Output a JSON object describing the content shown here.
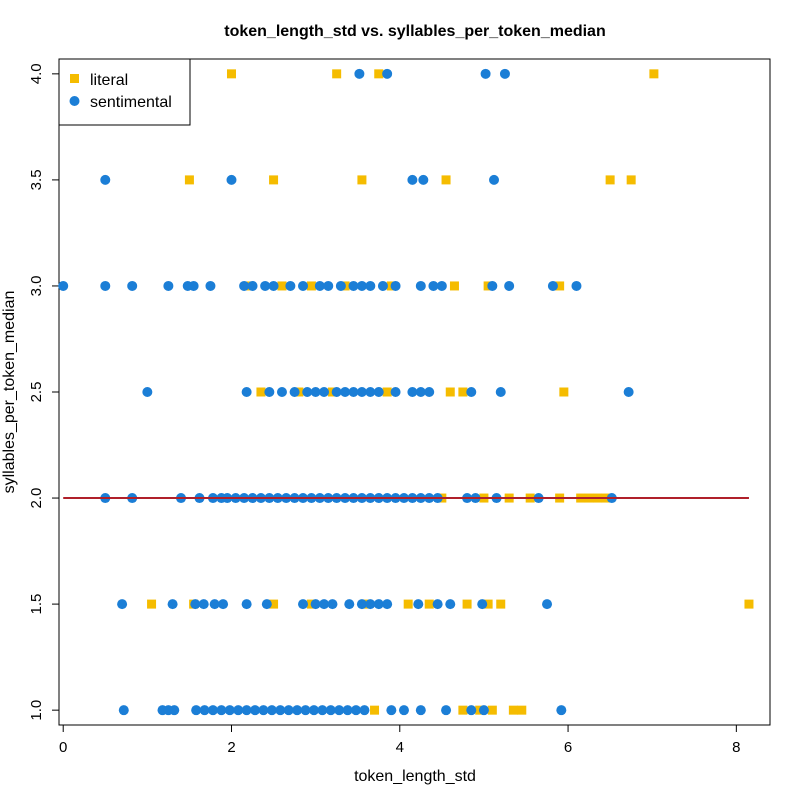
{
  "chart_data": {
    "type": "scatter",
    "title": "token_length_std vs. syllables_per_token_median",
    "xlabel": "token_length_std",
    "ylabel": "syllables_per_token_median",
    "xlim": [
      -0.05,
      8.4
    ],
    "ylim": [
      0.93,
      4.07
    ],
    "x_ticks": [
      "0",
      "2",
      "4",
      "6",
      "8"
    ],
    "y_ticks": [
      "1.0",
      "1.5",
      "2.0",
      "2.5",
      "3.0",
      "3.5",
      "4.0"
    ],
    "legend_position": "top-left",
    "series": [
      {
        "name": "literal",
        "marker": "square",
        "color": "#F5BC00",
        "points": [
          [
            2.0,
            4.0
          ],
          [
            3.25,
            4.0
          ],
          [
            3.75,
            4.0
          ],
          [
            7.02,
            4.0
          ],
          [
            1.5,
            3.5
          ],
          [
            2.5,
            3.5
          ],
          [
            3.55,
            3.5
          ],
          [
            4.55,
            3.5
          ],
          [
            6.5,
            3.5
          ],
          [
            6.75,
            3.5
          ],
          [
            2.2,
            3.0
          ],
          [
            2.6,
            3.0
          ],
          [
            2.95,
            3.0
          ],
          [
            3.35,
            3.0
          ],
          [
            3.9,
            3.0
          ],
          [
            4.65,
            3.0
          ],
          [
            5.05,
            3.0
          ],
          [
            5.9,
            3.0
          ],
          [
            2.35,
            2.5
          ],
          [
            2.8,
            2.5
          ],
          [
            3.2,
            2.5
          ],
          [
            3.85,
            2.5
          ],
          [
            4.6,
            2.5
          ],
          [
            4.75,
            2.5
          ],
          [
            5.95,
            2.5
          ],
          [
            4.5,
            2.0
          ],
          [
            5.0,
            2.0
          ],
          [
            5.3,
            2.0
          ],
          [
            5.55,
            2.0
          ],
          [
            5.9,
            2.0
          ],
          [
            6.15,
            2.0
          ],
          [
            6.25,
            2.0
          ],
          [
            6.35,
            2.0
          ],
          [
            6.45,
            2.0
          ],
          [
            1.05,
            1.5
          ],
          [
            1.55,
            1.5
          ],
          [
            2.5,
            1.5
          ],
          [
            2.95,
            1.5
          ],
          [
            3.6,
            1.5
          ],
          [
            4.1,
            1.5
          ],
          [
            4.35,
            1.5
          ],
          [
            4.8,
            1.5
          ],
          [
            5.05,
            1.5
          ],
          [
            5.2,
            1.5
          ],
          [
            8.15,
            1.5
          ],
          [
            4.75,
            1.0
          ],
          [
            4.95,
            1.0
          ],
          [
            5.1,
            1.0
          ],
          [
            5.35,
            1.0
          ],
          [
            5.45,
            1.0
          ],
          [
            3.7,
            1.0
          ]
        ]
      },
      {
        "name": "sentimental",
        "marker": "circle",
        "color": "#1B7ED6",
        "points": [
          [
            3.52,
            4.0
          ],
          [
            3.85,
            4.0
          ],
          [
            5.02,
            4.0
          ],
          [
            5.25,
            4.0
          ],
          [
            0.5,
            3.5
          ],
          [
            2.0,
            3.5
          ],
          [
            4.15,
            3.5
          ],
          [
            4.28,
            3.5
          ],
          [
            5.12,
            3.5
          ],
          [
            0.0,
            3.0
          ],
          [
            0.5,
            3.0
          ],
          [
            0.82,
            3.0
          ],
          [
            1.25,
            3.0
          ],
          [
            1.48,
            3.0
          ],
          [
            1.55,
            3.0
          ],
          [
            1.75,
            3.0
          ],
          [
            2.15,
            3.0
          ],
          [
            2.25,
            3.0
          ],
          [
            2.4,
            3.0
          ],
          [
            2.5,
            3.0
          ],
          [
            2.7,
            3.0
          ],
          [
            2.85,
            3.0
          ],
          [
            3.05,
            3.0
          ],
          [
            3.15,
            3.0
          ],
          [
            3.3,
            3.0
          ],
          [
            3.45,
            3.0
          ],
          [
            3.55,
            3.0
          ],
          [
            3.65,
            3.0
          ],
          [
            3.8,
            3.0
          ],
          [
            3.95,
            3.0
          ],
          [
            4.25,
            3.0
          ],
          [
            4.4,
            3.0
          ],
          [
            4.5,
            3.0
          ],
          [
            5.1,
            3.0
          ],
          [
            5.3,
            3.0
          ],
          [
            5.82,
            3.0
          ],
          [
            6.1,
            3.0
          ],
          [
            1.0,
            2.5
          ],
          [
            2.18,
            2.5
          ],
          [
            2.45,
            2.5
          ],
          [
            2.6,
            2.5
          ],
          [
            2.75,
            2.5
          ],
          [
            2.9,
            2.5
          ],
          [
            3.0,
            2.5
          ],
          [
            3.1,
            2.5
          ],
          [
            3.25,
            2.5
          ],
          [
            3.35,
            2.5
          ],
          [
            3.45,
            2.5
          ],
          [
            3.55,
            2.5
          ],
          [
            3.65,
            2.5
          ],
          [
            3.75,
            2.5
          ],
          [
            3.95,
            2.5
          ],
          [
            4.15,
            2.5
          ],
          [
            4.25,
            2.5
          ],
          [
            4.35,
            2.5
          ],
          [
            4.85,
            2.5
          ],
          [
            5.2,
            2.5
          ],
          [
            6.72,
            2.5
          ],
          [
            0.5,
            2.0
          ],
          [
            0.82,
            2.0
          ],
          [
            1.4,
            2.0
          ],
          [
            1.62,
            2.0
          ],
          [
            1.78,
            2.0
          ],
          [
            1.88,
            2.0
          ],
          [
            1.95,
            2.0
          ],
          [
            2.05,
            2.0
          ],
          [
            2.15,
            2.0
          ],
          [
            2.25,
            2.0
          ],
          [
            2.35,
            2.0
          ],
          [
            2.45,
            2.0
          ],
          [
            2.55,
            2.0
          ],
          [
            2.65,
            2.0
          ],
          [
            2.75,
            2.0
          ],
          [
            2.85,
            2.0
          ],
          [
            2.95,
            2.0
          ],
          [
            3.05,
            2.0
          ],
          [
            3.15,
            2.0
          ],
          [
            3.25,
            2.0
          ],
          [
            3.35,
            2.0
          ],
          [
            3.45,
            2.0
          ],
          [
            3.55,
            2.0
          ],
          [
            3.65,
            2.0
          ],
          [
            3.75,
            2.0
          ],
          [
            3.85,
            2.0
          ],
          [
            3.95,
            2.0
          ],
          [
            4.05,
            2.0
          ],
          [
            4.15,
            2.0
          ],
          [
            4.25,
            2.0
          ],
          [
            4.35,
            2.0
          ],
          [
            4.45,
            2.0
          ],
          [
            4.8,
            2.0
          ],
          [
            4.9,
            2.0
          ],
          [
            5.15,
            2.0
          ],
          [
            5.65,
            2.0
          ],
          [
            6.52,
            2.0
          ],
          [
            0.7,
            1.5
          ],
          [
            1.3,
            1.5
          ],
          [
            1.57,
            1.5
          ],
          [
            1.67,
            1.5
          ],
          [
            1.8,
            1.5
          ],
          [
            1.9,
            1.5
          ],
          [
            2.18,
            1.5
          ],
          [
            2.42,
            1.5
          ],
          [
            2.85,
            1.5
          ],
          [
            3.0,
            1.5
          ],
          [
            3.1,
            1.5
          ],
          [
            3.2,
            1.5
          ],
          [
            3.4,
            1.5
          ],
          [
            3.55,
            1.5
          ],
          [
            3.65,
            1.5
          ],
          [
            3.75,
            1.5
          ],
          [
            3.85,
            1.5
          ],
          [
            4.22,
            1.5
          ],
          [
            4.45,
            1.5
          ],
          [
            4.6,
            1.5
          ],
          [
            4.98,
            1.5
          ],
          [
            5.75,
            1.5
          ],
          [
            0.72,
            1.0
          ],
          [
            1.18,
            1.0
          ],
          [
            1.25,
            1.0
          ],
          [
            1.32,
            1.0
          ],
          [
            1.58,
            1.0
          ],
          [
            1.68,
            1.0
          ],
          [
            1.78,
            1.0
          ],
          [
            1.88,
            1.0
          ],
          [
            1.98,
            1.0
          ],
          [
            2.08,
            1.0
          ],
          [
            2.18,
            1.0
          ],
          [
            2.28,
            1.0
          ],
          [
            2.38,
            1.0
          ],
          [
            2.48,
            1.0
          ],
          [
            2.58,
            1.0
          ],
          [
            2.68,
            1.0
          ],
          [
            2.78,
            1.0
          ],
          [
            2.88,
            1.0
          ],
          [
            2.98,
            1.0
          ],
          [
            3.08,
            1.0
          ],
          [
            3.18,
            1.0
          ],
          [
            3.28,
            1.0
          ],
          [
            3.38,
            1.0
          ],
          [
            3.48,
            1.0
          ],
          [
            3.58,
            1.0
          ],
          [
            3.9,
            1.0
          ],
          [
            4.05,
            1.0
          ],
          [
            4.25,
            1.0
          ],
          [
            4.55,
            1.0
          ],
          [
            4.85,
            1.0
          ],
          [
            5.0,
            1.0
          ],
          [
            5.92,
            1.0
          ]
        ]
      }
    ],
    "fit_line": {
      "color": "#B0202A",
      "x": [
        0.0,
        8.15
      ],
      "y": [
        2.0,
        2.0
      ]
    }
  }
}
